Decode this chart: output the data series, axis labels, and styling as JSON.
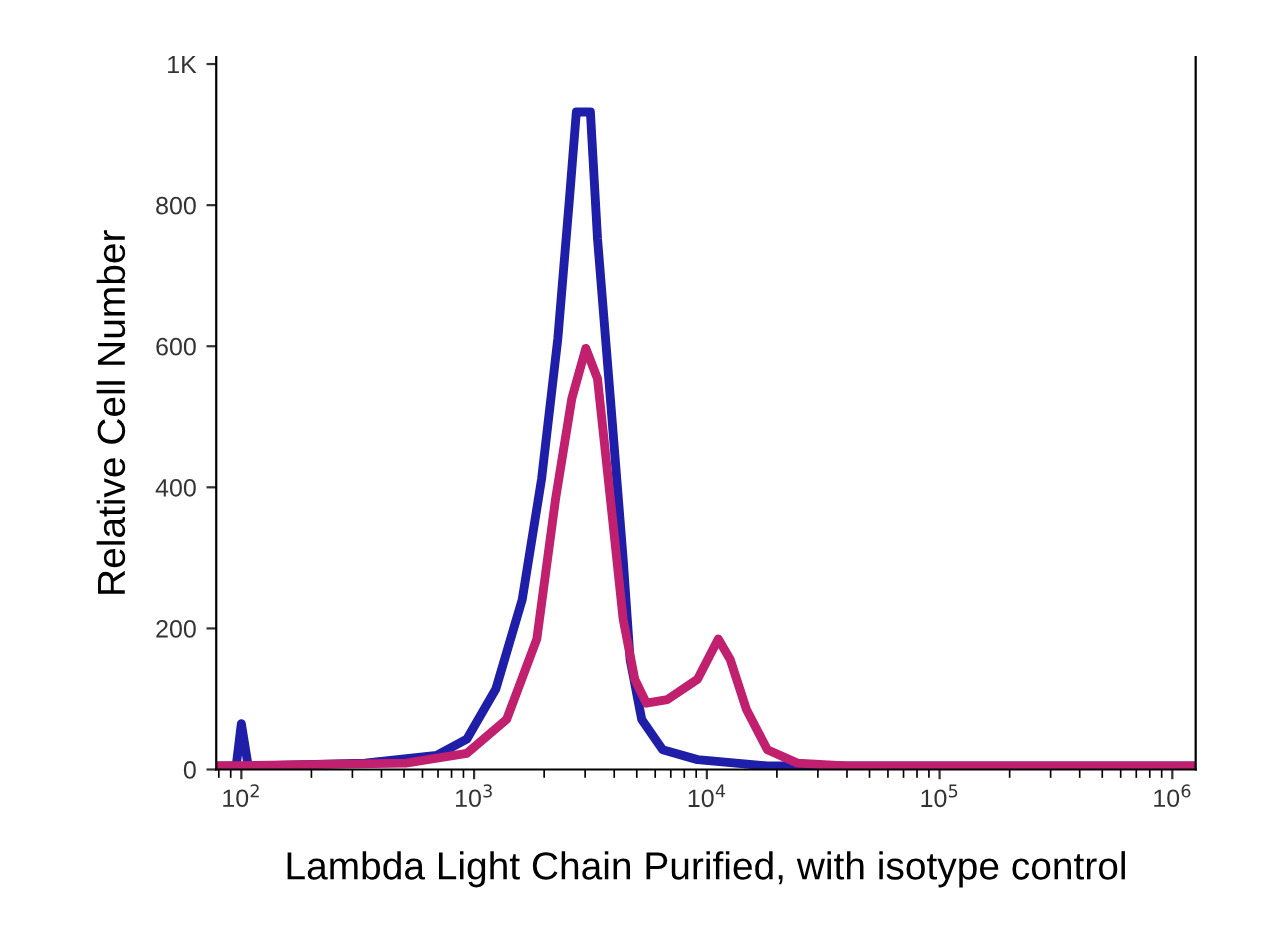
{
  "chart_data": {
    "type": "line",
    "xlabel": "Lambda Light Chain Purified, with isotype control",
    "ylabel": "Relative Cell Number",
    "log": "x",
    "xlim": [
      78,
      1260000
    ],
    "ylim": [
      0,
      1010
    ],
    "xticks": [
      {
        "value": 100,
        "label": "10$^{2}$"
      },
      {
        "value": 1000,
        "label": "10$^{3}$"
      },
      {
        "value": 10000,
        "label": "10$^{4}$"
      },
      {
        "value": 100000,
        "label": "10$^{5}$"
      },
      {
        "value": 1000000,
        "label": "10$^{6}$"
      }
    ],
    "yticks": [
      0,
      200,
      400,
      600,
      800,
      {
        "value": 1000,
        "label": "1K"
      }
    ],
    "grid": false,
    "marker": "none",
    "line_style": "solid",
    "series": [
      {
        "color": "#1e1ea8",
        "x": [
          78,
          95,
          100,
          107,
          340,
          690,
          930,
          1240,
          1610,
          1950,
          2290,
          2570,
          2750,
          3160,
          3390,
          3850,
          4370,
          4680,
          5250,
          6460,
          9120,
          18200,
          1260000
        ],
        "values": [
          5,
          5,
          65,
          5,
          9,
          20,
          43,
          114,
          241,
          412,
          611,
          810,
          932,
          932,
          753,
          526,
          298,
          156,
          71,
          28,
          14,
          5,
          5
        ]
      },
      {
        "color": "#c0206e",
        "x": [
          78,
          510,
          930,
          1380,
          1860,
          2240,
          2630,
          3020,
          3390,
          3850,
          4370,
          4900,
          5500,
          6760,
          9120,
          11200,
          12600,
          14800,
          18200,
          24500,
          39800,
          1260000
        ],
        "values": [
          5,
          9,
          23,
          71,
          185,
          384,
          526,
          597,
          554,
          384,
          213,
          128,
          94,
          99,
          128,
          185,
          156,
          85,
          28,
          9,
          5,
          5
        ]
      }
    ]
  }
}
